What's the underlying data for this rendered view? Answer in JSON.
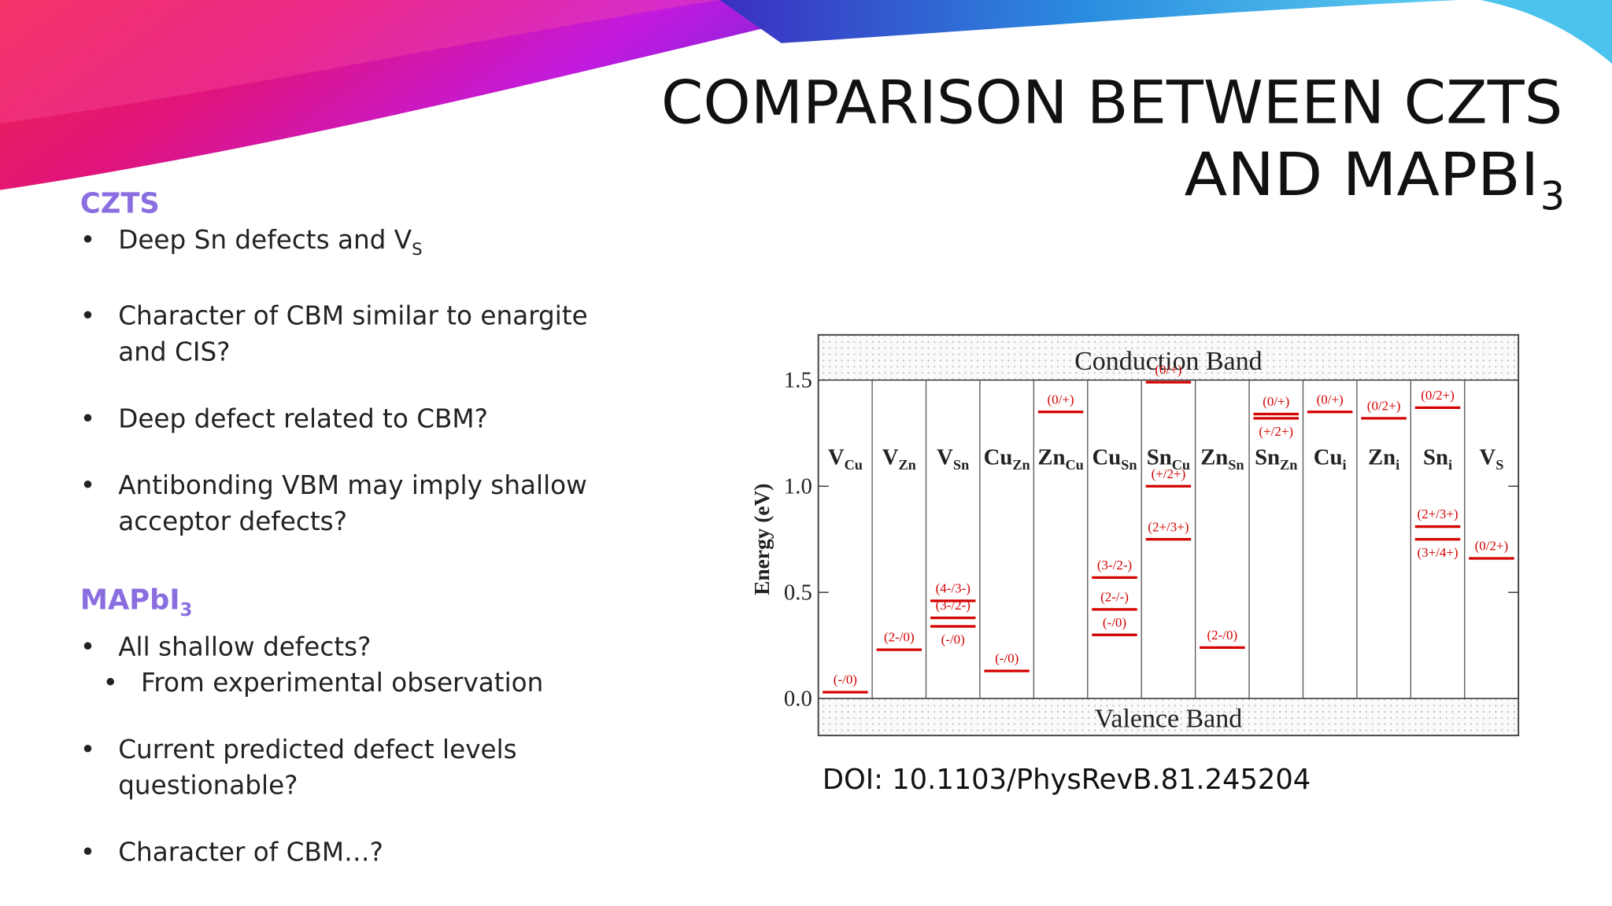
{
  "title": {
    "line1": "COMPARISON BETWEEN CZTS",
    "line2": "AND MAPBI",
    "line2_sub": "3"
  },
  "sections": [
    {
      "heading": "CZTS",
      "items": [
        {
          "text": "Deep Sn defects and V",
          "sub": "S"
        },
        {
          "text": "Character of CBM similar to enargite and CIS?"
        },
        {
          "text": "Deep defect related to CBM?"
        },
        {
          "text": "Antibonding VBM may imply shallow acceptor defects?"
        }
      ]
    },
    {
      "heading": "MAPbI",
      "heading_sub": "3",
      "items": [
        {
          "text": "All shallow defects?",
          "subitems": [
            "From experimental observation"
          ]
        },
        {
          "text": "Current predicted defect levels questionable?"
        },
        {
          "text": "Character of CBM…?"
        }
      ]
    }
  ],
  "chart": {
    "type": "levels",
    "y_label": "Energy (eV)",
    "top_band": "Conduction Band",
    "bottom_band": "Valence Band",
    "ylim": [
      -0.174,
      1.713
    ],
    "yticks": [
      {
        "value": 0,
        "label": "0.0"
      },
      {
        "value": 0.5,
        "label": "0.5"
      },
      {
        "value": 1,
        "label": "1.0"
      },
      {
        "value": 1.5,
        "label": "1.5"
      }
    ],
    "color": "#d40000",
    "columns": [
      {
        "name": "V",
        "sub": "Cu",
        "levels": [
          {
            "value": 0.03,
            "label": "(-/0)"
          }
        ]
      },
      {
        "name": "V",
        "sub": "Zn",
        "levels": [
          {
            "value": 0.23,
            "label": "(2-/0)"
          }
        ]
      },
      {
        "name": "V",
        "sub": "Sn",
        "levels": [
          {
            "value": 0.46,
            "label": "(4-/3-)"
          },
          {
            "value": 0.38,
            "label": "(3-/2-)"
          },
          {
            "value": 0.34,
            "label": "(-/0)"
          }
        ]
      },
      {
        "name": "Cu",
        "sub": "Zn",
        "levels": [
          {
            "value": 0.13,
            "label": "(-/0)"
          }
        ]
      },
      {
        "name": "Zn",
        "sub": "Cu",
        "levels": [
          {
            "value": 1.35,
            "label": "(0/+)"
          }
        ]
      },
      {
        "name": "Cu",
        "sub": "Sn",
        "levels": [
          {
            "value": 0.57,
            "label": "(3-/2-)"
          },
          {
            "value": 0.42,
            "label": "(2-/-)"
          },
          {
            "value": 0.3,
            "label": "(-/0)"
          }
        ]
      },
      {
        "name": "Sn",
        "sub": "Cu",
        "levels": [
          {
            "value": 1.49,
            "label": "(0/+)"
          },
          {
            "value": 1.0,
            "label": "(+/2+)"
          },
          {
            "value": 0.75,
            "label": "(2+/3+)"
          }
        ]
      },
      {
        "name": "Zn",
        "sub": "Sn",
        "levels": [
          {
            "value": 0.24,
            "label": "(2-/0)"
          }
        ]
      },
      {
        "name": "Sn",
        "sub": "Zn",
        "levels": [
          {
            "value": 1.34,
            "label": "(0/+)"
          },
          {
            "value": 1.32,
            "label": "(+/2+)"
          }
        ]
      },
      {
        "name": "Cu",
        "sub": "i",
        "levels": [
          {
            "value": 1.35,
            "label": "(0/+)"
          }
        ]
      },
      {
        "name": "Zn",
        "sub": "i",
        "levels": [
          {
            "value": 1.32,
            "label": "(0/2+)"
          }
        ]
      },
      {
        "name": "Sn",
        "sub": "i",
        "levels": [
          {
            "value": 1.37,
            "label": "(0/2+)"
          },
          {
            "value": 0.81,
            "label": "(2+/3+)"
          },
          {
            "value": 0.75,
            "label": "(3+/4+)"
          }
        ]
      },
      {
        "name": "V",
        "sub": "S",
        "levels": [
          {
            "value": 0.66,
            "label": "(0/2+)"
          }
        ]
      }
    ]
  },
  "doi": "DOI: 10.1103/PhysRevB.81.245204"
}
